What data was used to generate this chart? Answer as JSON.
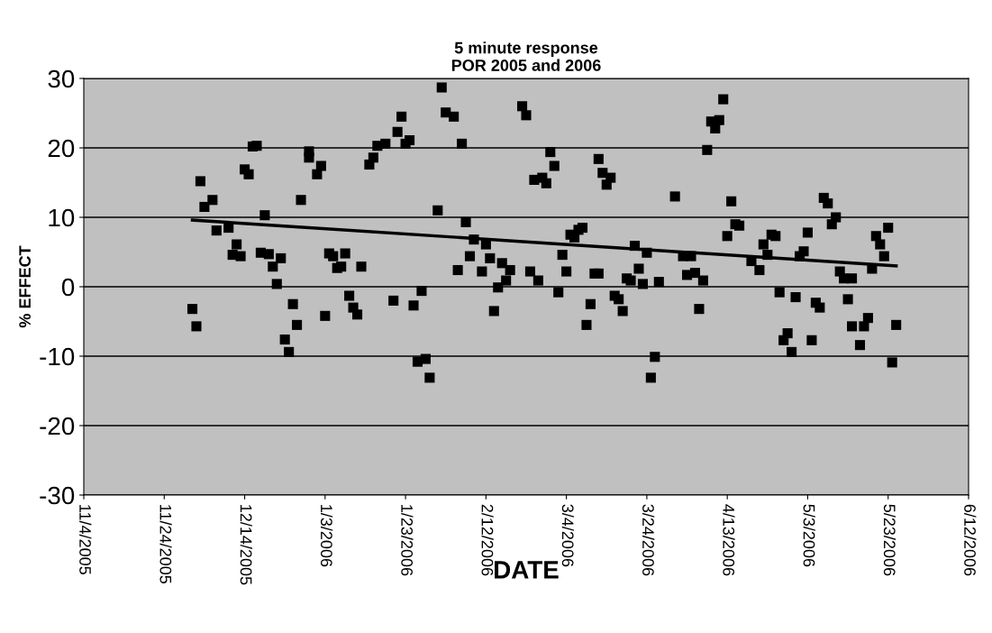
{
  "chart_data": {
    "type": "scatter",
    "title": "5 minute response",
    "subtitle": "POR 2005 and 2006",
    "xlabel": "DATE",
    "ylabel": "% EFFECT",
    "x": [
      "2005-12-01",
      "2005-12-02",
      "2005-12-03",
      "2005-12-04",
      "2005-12-06",
      "2005-12-07",
      "2005-12-10",
      "2005-12-11",
      "2005-12-12",
      "2005-12-13",
      "2005-12-14",
      "2005-12-15",
      "2005-12-16",
      "2005-12-17",
      "2005-12-18",
      "2005-12-19",
      "2005-12-20",
      "2005-12-21",
      "2005-12-22",
      "2005-12-23",
      "2005-12-24",
      "2005-12-25",
      "2005-12-26",
      "2005-12-27",
      "2005-12-28",
      "2005-12-30",
      "2005-12-30",
      "2006-01-01",
      "2006-01-02",
      "2006-01-03",
      "2006-01-04",
      "2006-01-05",
      "2006-01-06",
      "2006-01-07",
      "2006-01-08",
      "2006-01-09",
      "2006-01-10",
      "2006-01-11",
      "2006-01-12",
      "2006-01-14",
      "2006-01-15",
      "2006-01-16",
      "2006-01-18",
      "2006-01-20",
      "2006-01-21",
      "2006-01-22",
      "2006-01-23",
      "2006-01-24",
      "2006-01-25",
      "2006-01-26",
      "2006-01-27",
      "2006-01-28",
      "2006-01-29",
      "2006-01-31",
      "2006-02-01",
      "2006-02-02",
      "2006-02-04",
      "2006-02-05",
      "2006-02-06",
      "2006-02-07",
      "2006-02-08",
      "2006-02-09",
      "2006-02-11",
      "2006-02-12",
      "2006-02-13",
      "2006-02-14",
      "2006-02-15",
      "2006-02-16",
      "2006-02-17",
      "2006-02-18",
      "2006-02-21",
      "2006-02-22",
      "2006-02-23",
      "2006-02-24",
      "2006-02-25",
      "2006-02-26",
      "2006-02-27",
      "2006-02-28",
      "2006-03-01",
      "2006-03-02",
      "2006-03-03",
      "2006-03-04",
      "2006-03-05",
      "2006-03-06",
      "2006-03-07",
      "2006-03-08",
      "2006-03-09",
      "2006-03-10",
      "2006-03-11",
      "2006-03-12",
      "2006-03-12",
      "2006-03-13",
      "2006-03-14",
      "2006-03-15",
      "2006-03-16",
      "2006-03-17",
      "2006-03-18",
      "2006-03-19",
      "2006-03-20",
      "2006-03-21",
      "2006-03-22",
      "2006-03-23",
      "2006-03-24",
      "2006-03-25",
      "2006-03-26",
      "2006-03-27",
      "2006-03-31",
      "2006-04-02",
      "2006-04-03",
      "2006-04-04",
      "2006-04-05",
      "2006-04-06",
      "2006-04-07",
      "2006-04-08",
      "2006-04-09",
      "2006-04-10",
      "2006-04-11",
      "2006-04-12",
      "2006-04-13",
      "2006-04-14",
      "2006-04-15",
      "2006-04-16",
      "2006-04-19",
      "2006-04-21",
      "2006-04-22",
      "2006-04-23",
      "2006-04-24",
      "2006-04-25",
      "2006-04-26",
      "2006-04-27",
      "2006-04-28",
      "2006-04-29",
      "2006-04-30",
      "2006-05-01",
      "2006-05-02",
      "2006-05-03",
      "2006-05-04",
      "2006-05-05",
      "2006-05-06",
      "2006-05-07",
      "2006-05-08",
      "2006-05-09",
      "2006-05-10",
      "2006-05-11",
      "2006-05-12",
      "2006-05-13",
      "2006-05-14",
      "2006-05-14",
      "2006-05-16",
      "2006-05-17",
      "2006-05-18",
      "2006-05-19",
      "2006-05-20",
      "2006-05-21",
      "2006-05-22",
      "2006-05-23",
      "2006-05-24",
      "2006-05-25"
    ],
    "series": [
      {
        "color": "#000000",
        "marker": "square",
        "values": [
          -3.2,
          -5.7,
          15.2,
          11.5,
          12.5,
          8.1,
          8.5,
          4.6,
          6.1,
          4.4,
          16.9,
          16.2,
          20.2,
          20.3,
          4.9,
          10.3,
          4.7,
          2.9,
          0.4,
          4.1,
          -7.6,
          -9.4,
          -2.5,
          -5.5,
          12.5,
          18.6,
          19.5,
          16.2,
          17.4,
          -4.2,
          4.8,
          4.4,
          2.7,
          2.9,
          4.8,
          -1.3,
          -3.0,
          -4.0,
          2.9,
          17.6,
          18.6,
          20.3,
          20.6,
          -2.0,
          22.3,
          24.5,
          20.6,
          21.1,
          -2.7,
          -10.8,
          -0.6,
          -10.4,
          -13.1,
          11.0,
          28.7,
          25.1,
          24.5,
          2.4,
          20.6,
          9.3,
          4.4,
          6.8,
          2.2,
          6.1,
          4.1,
          -3.5,
          -0.1,
          3.4,
          0.9,
          2.4,
          26.0,
          24.7,
          2.2,
          15.4,
          0.9,
          15.7,
          14.9,
          19.4,
          17.4,
          -0.8,
          4.6,
          2.2,
          7.5,
          7.1,
          8.2,
          8.5,
          -5.5,
          -2.5,
          1.9,
          18.4,
          1.9,
          16.4,
          14.7,
          15.7,
          -1.3,
          -1.8,
          -3.5,
          1.2,
          0.9,
          5.9,
          2.6,
          0.4,
          4.9,
          -13.1,
          -10.1,
          0.7,
          13.0,
          4.4,
          1.7,
          4.4,
          2.0,
          -3.2,
          0.9,
          19.7,
          23.8,
          22.8,
          24.0,
          27.0,
          7.3,
          12.3,
          9.0,
          8.8,
          3.7,
          2.4,
          6.1,
          4.6,
          7.5,
          7.3,
          -0.8,
          -7.7,
          -6.7,
          -9.4,
          -1.5,
          4.4,
          5.1,
          7.8,
          -7.7,
          -2.3,
          -3.0,
          12.8,
          12.0,
          9.0,
          10.0,
          2.2,
          1.2,
          -1.8,
          -5.7,
          1.2,
          -8.4,
          -5.7,
          -4.5,
          2.6,
          7.3,
          6.1,
          4.4,
          8.5,
          -10.9,
          -5.5
        ]
      },
      {
        "type": "line",
        "color": "#000000",
        "marker": "none",
        "line_style": "solid",
        "x": [
          "2005-12-01",
          "2006-05-25"
        ],
        "values": [
          9.6,
          3.0
        ]
      }
    ],
    "xlim": [
      "2005-11-04",
      "2006-06-12"
    ],
    "xticks": [
      {
        "value": "2005-11-04",
        "label": "11/4/2005"
      },
      {
        "value": "2005-11-24",
        "label": "11/24/2005"
      },
      {
        "value": "2005-12-14",
        "label": "12/14/2005"
      },
      {
        "value": "2006-01-03",
        "label": "1/3/2006"
      },
      {
        "value": "2006-01-23",
        "label": "1/23/2006"
      },
      {
        "value": "2006-02-12",
        "label": "2/12/2006"
      },
      {
        "value": "2006-03-04",
        "label": "3/4/2006"
      },
      {
        "value": "2006-03-24",
        "label": "3/24/2006"
      },
      {
        "value": "2006-04-13",
        "label": "4/13/2006"
      },
      {
        "value": "2006-05-03",
        "label": "5/3/2006"
      },
      {
        "value": "2006-05-23",
        "label": "5/23/2006"
      },
      {
        "value": "2006-06-12",
        "label": "6/12/2006"
      }
    ],
    "ylim": [
      -30,
      30
    ],
    "yticks": [
      -30,
      -20,
      -10,
      0,
      10,
      20,
      30
    ],
    "grid": "y",
    "legend": false
  }
}
